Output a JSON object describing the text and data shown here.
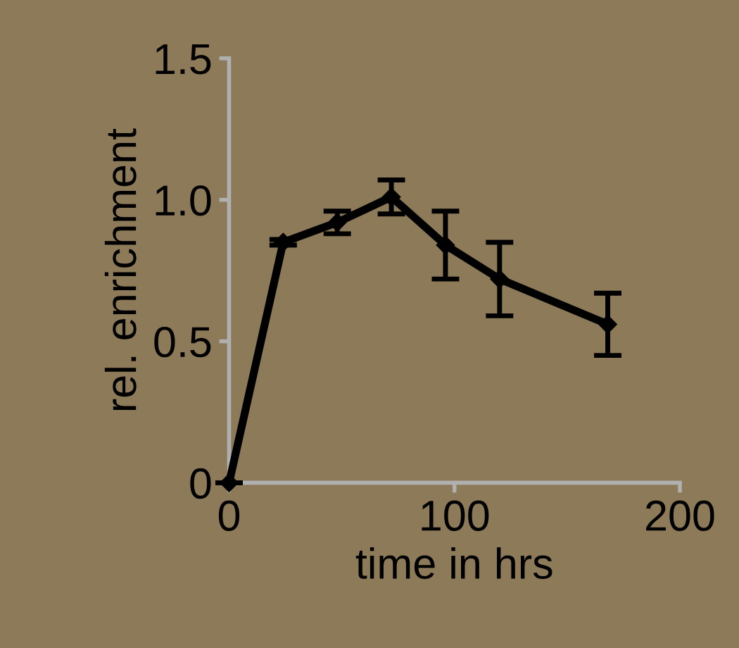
{
  "chart_data": {
    "type": "line",
    "xlabel": "time in hrs",
    "ylabel": "rel. enrichment",
    "x": [
      0,
      24,
      48,
      72,
      96,
      120,
      168
    ],
    "series": [
      {
        "color": "#000000",
        "values": [
          0,
          0.85,
          0.92,
          1.01,
          0.84,
          0.72,
          0.56
        ],
        "errors": [
          null,
          0.01,
          0.04,
          0.06,
          0.12,
          0.13,
          0.11
        ]
      }
    ],
    "xlim": [
      0,
      200
    ],
    "ylim": [
      0,
      1.5
    ],
    "xticks": [
      0,
      100,
      200
    ],
    "yticks": [
      0,
      0.5,
      {
        "value": 1,
        "label": "1.0"
      },
      1.5
    ],
    "marker": "diamond",
    "line_style": "solid",
    "grid": false,
    "legend": false
  }
}
